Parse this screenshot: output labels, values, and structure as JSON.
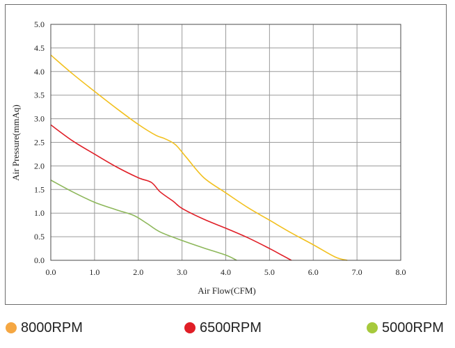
{
  "chart_data": {
    "type": "line",
    "title": "",
    "xlabel": "Air Flow(CFM)",
    "ylabel": "Air Pressure(mmAq)",
    "xlim": [
      0,
      8
    ],
    "ylim": [
      0,
      5
    ],
    "x_ticks": [
      "0.0",
      "1.0",
      "2.0",
      "3.0",
      "4.0",
      "5.0",
      "6.0",
      "7.0",
      "8.0"
    ],
    "y_ticks": [
      "0.0",
      "0.5",
      "1.0",
      "1.5",
      "2.0",
      "2.5",
      "3.0",
      "3.5",
      "4.0",
      "4.5",
      "5.0"
    ],
    "grid": true,
    "legend_position": "bottom",
    "series": [
      {
        "name": "8000RPM",
        "color": "#f2c01e",
        "legend_color": "#f5a742",
        "points": [
          [
            0,
            4.35
          ],
          [
            0.5,
            3.95
          ],
          [
            1.0,
            3.58
          ],
          [
            1.5,
            3.22
          ],
          [
            2.0,
            2.88
          ],
          [
            2.4,
            2.65
          ],
          [
            2.6,
            2.58
          ],
          [
            2.85,
            2.45
          ],
          [
            3.1,
            2.18
          ],
          [
            3.5,
            1.75
          ],
          [
            4.0,
            1.43
          ],
          [
            4.5,
            1.12
          ],
          [
            5.0,
            0.85
          ],
          [
            5.5,
            0.58
          ],
          [
            6.0,
            0.33
          ],
          [
            6.5,
            0.07
          ],
          [
            6.78,
            0.0
          ]
        ]
      },
      {
        "name": "6500RPM",
        "color": "#e01e26",
        "legend_color": "#e01e26",
        "points": [
          [
            0,
            2.87
          ],
          [
            0.5,
            2.53
          ],
          [
            1.0,
            2.25
          ],
          [
            1.5,
            1.98
          ],
          [
            2.0,
            1.75
          ],
          [
            2.3,
            1.65
          ],
          [
            2.5,
            1.45
          ],
          [
            2.8,
            1.25
          ],
          [
            3.0,
            1.1
          ],
          [
            3.5,
            0.87
          ],
          [
            4.0,
            0.68
          ],
          [
            4.5,
            0.48
          ],
          [
            5.0,
            0.25
          ],
          [
            5.3,
            0.1
          ],
          [
            5.5,
            0.0
          ]
        ]
      },
      {
        "name": "5000RPM",
        "color": "#8db75a",
        "legend_color": "#a6c93c",
        "points": [
          [
            0,
            1.7
          ],
          [
            0.5,
            1.45
          ],
          [
            1.0,
            1.23
          ],
          [
            1.5,
            1.07
          ],
          [
            1.9,
            0.95
          ],
          [
            2.2,
            0.78
          ],
          [
            2.5,
            0.6
          ],
          [
            3.0,
            0.42
          ],
          [
            3.5,
            0.26
          ],
          [
            4.0,
            0.11
          ],
          [
            4.25,
            0.0
          ]
        ]
      }
    ]
  }
}
